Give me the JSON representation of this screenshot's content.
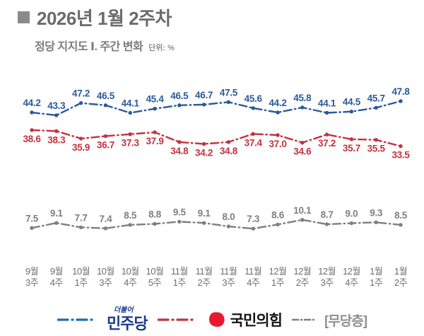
{
  "header": {
    "title": "2026년 1월 2주차",
    "subtitle": "정당 지지도 Ⅰ. 주간 변화",
    "unit_label": "단위: %"
  },
  "chart_data": {
    "type": "line",
    "title": "정당 지지도 주간 변화",
    "unit": "%",
    "grid": false,
    "legend_position": "bottom",
    "ylim": [
      0,
      55
    ],
    "categories": [
      [
        "9월",
        "3주"
      ],
      [
        "9월",
        "4주"
      ],
      [
        "10월",
        "1주"
      ],
      [
        "10월",
        "3주"
      ],
      [
        "10월",
        "4주"
      ],
      [
        "10월",
        "5주"
      ],
      [
        "11월",
        "1주"
      ],
      [
        "11월",
        "2주"
      ],
      [
        "11월",
        "3주"
      ],
      [
        "11월",
        "4주"
      ],
      [
        "12월",
        "1주"
      ],
      [
        "12월",
        "2주"
      ],
      [
        "12월",
        "3주"
      ],
      [
        "12월",
        "4주"
      ],
      [
        "1월",
        "1주"
      ],
      [
        "1월",
        "2주"
      ]
    ],
    "series": [
      {
        "key": "minjoo",
        "name": "더불어민주당",
        "color": "#2a5a9c",
        "label_position": "above",
        "values": [
          44.2,
          43.3,
          47.2,
          46.5,
          44.1,
          45.4,
          46.5,
          46.7,
          47.5,
          45.6,
          44.2,
          45.8,
          44.1,
          44.5,
          45.7,
          47.8
        ]
      },
      {
        "key": "ppp",
        "name": "국민의힘",
        "color": "#c4323e",
        "label_position": "below",
        "values": [
          38.6,
          38.3,
          35.9,
          36.7,
          37.3,
          37.9,
          34.8,
          34.2,
          34.8,
          37.4,
          37.0,
          34.6,
          37.2,
          35.7,
          35.5,
          33.5
        ]
      },
      {
        "key": "independent",
        "name": "무당층",
        "color": "#7f7f7f",
        "label_position": "above",
        "values": [
          7.5,
          9.1,
          7.7,
          7.4,
          8.5,
          8.8,
          9.5,
          9.1,
          8.0,
          7.3,
          8.6,
          10.1,
          8.7,
          9.0,
          9.3,
          8.5
        ]
      }
    ]
  },
  "legend": {
    "minjoo_small": "더불어",
    "minjoo": "민주당",
    "ppp": "국민의힘",
    "independent": "[무당층]"
  },
  "colors": {
    "minjoo_line": "#2a5a9c",
    "minjoo_legend_line": "#1e6cb5",
    "minjoo_wordmark": "#1b3b8d",
    "ppp_line": "#c4323e",
    "ppp_logo_red": "#e8192c",
    "ppp_text": "#141414",
    "independent_line": "#7f7f7f",
    "independent_text": "#8f8f8f",
    "title_gray": "#6b6b6b"
  }
}
